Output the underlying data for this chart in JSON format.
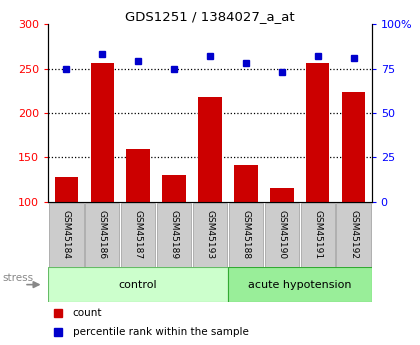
{
  "title": "GDS1251 / 1384027_a_at",
  "samples": [
    "GSM45184",
    "GSM45186",
    "GSM45187",
    "GSM45189",
    "GSM45193",
    "GSM45188",
    "GSM45190",
    "GSM45191",
    "GSM45192"
  ],
  "counts": [
    128,
    256,
    160,
    130,
    218,
    142,
    116,
    256,
    224
  ],
  "percentiles": [
    75,
    83,
    79,
    75,
    82,
    78,
    73,
    82,
    81
  ],
  "bar_color": "#cc0000",
  "dot_color": "#0000cc",
  "ylim_left": [
    100,
    300
  ],
  "ylim_right": [
    0,
    100
  ],
  "yticks_left": [
    100,
    150,
    200,
    250,
    300
  ],
  "yticks_right": [
    0,
    25,
    50,
    75,
    100
  ],
  "ytick_labels_right": [
    "0",
    "25",
    "50",
    "75",
    "100%"
  ],
  "grid_lines": [
    150,
    200,
    250
  ],
  "bg_color": "#ffffff",
  "sample_box_color": "#cccccc",
  "control_color": "#ccffcc",
  "acute_color": "#99ee99",
  "control_count": 5,
  "acute_count": 4,
  "control_label": "control",
  "acute_label": "acute hypotension",
  "stress_label": "stress",
  "legend_count_label": "count",
  "legend_pct_label": "percentile rank within the sample"
}
